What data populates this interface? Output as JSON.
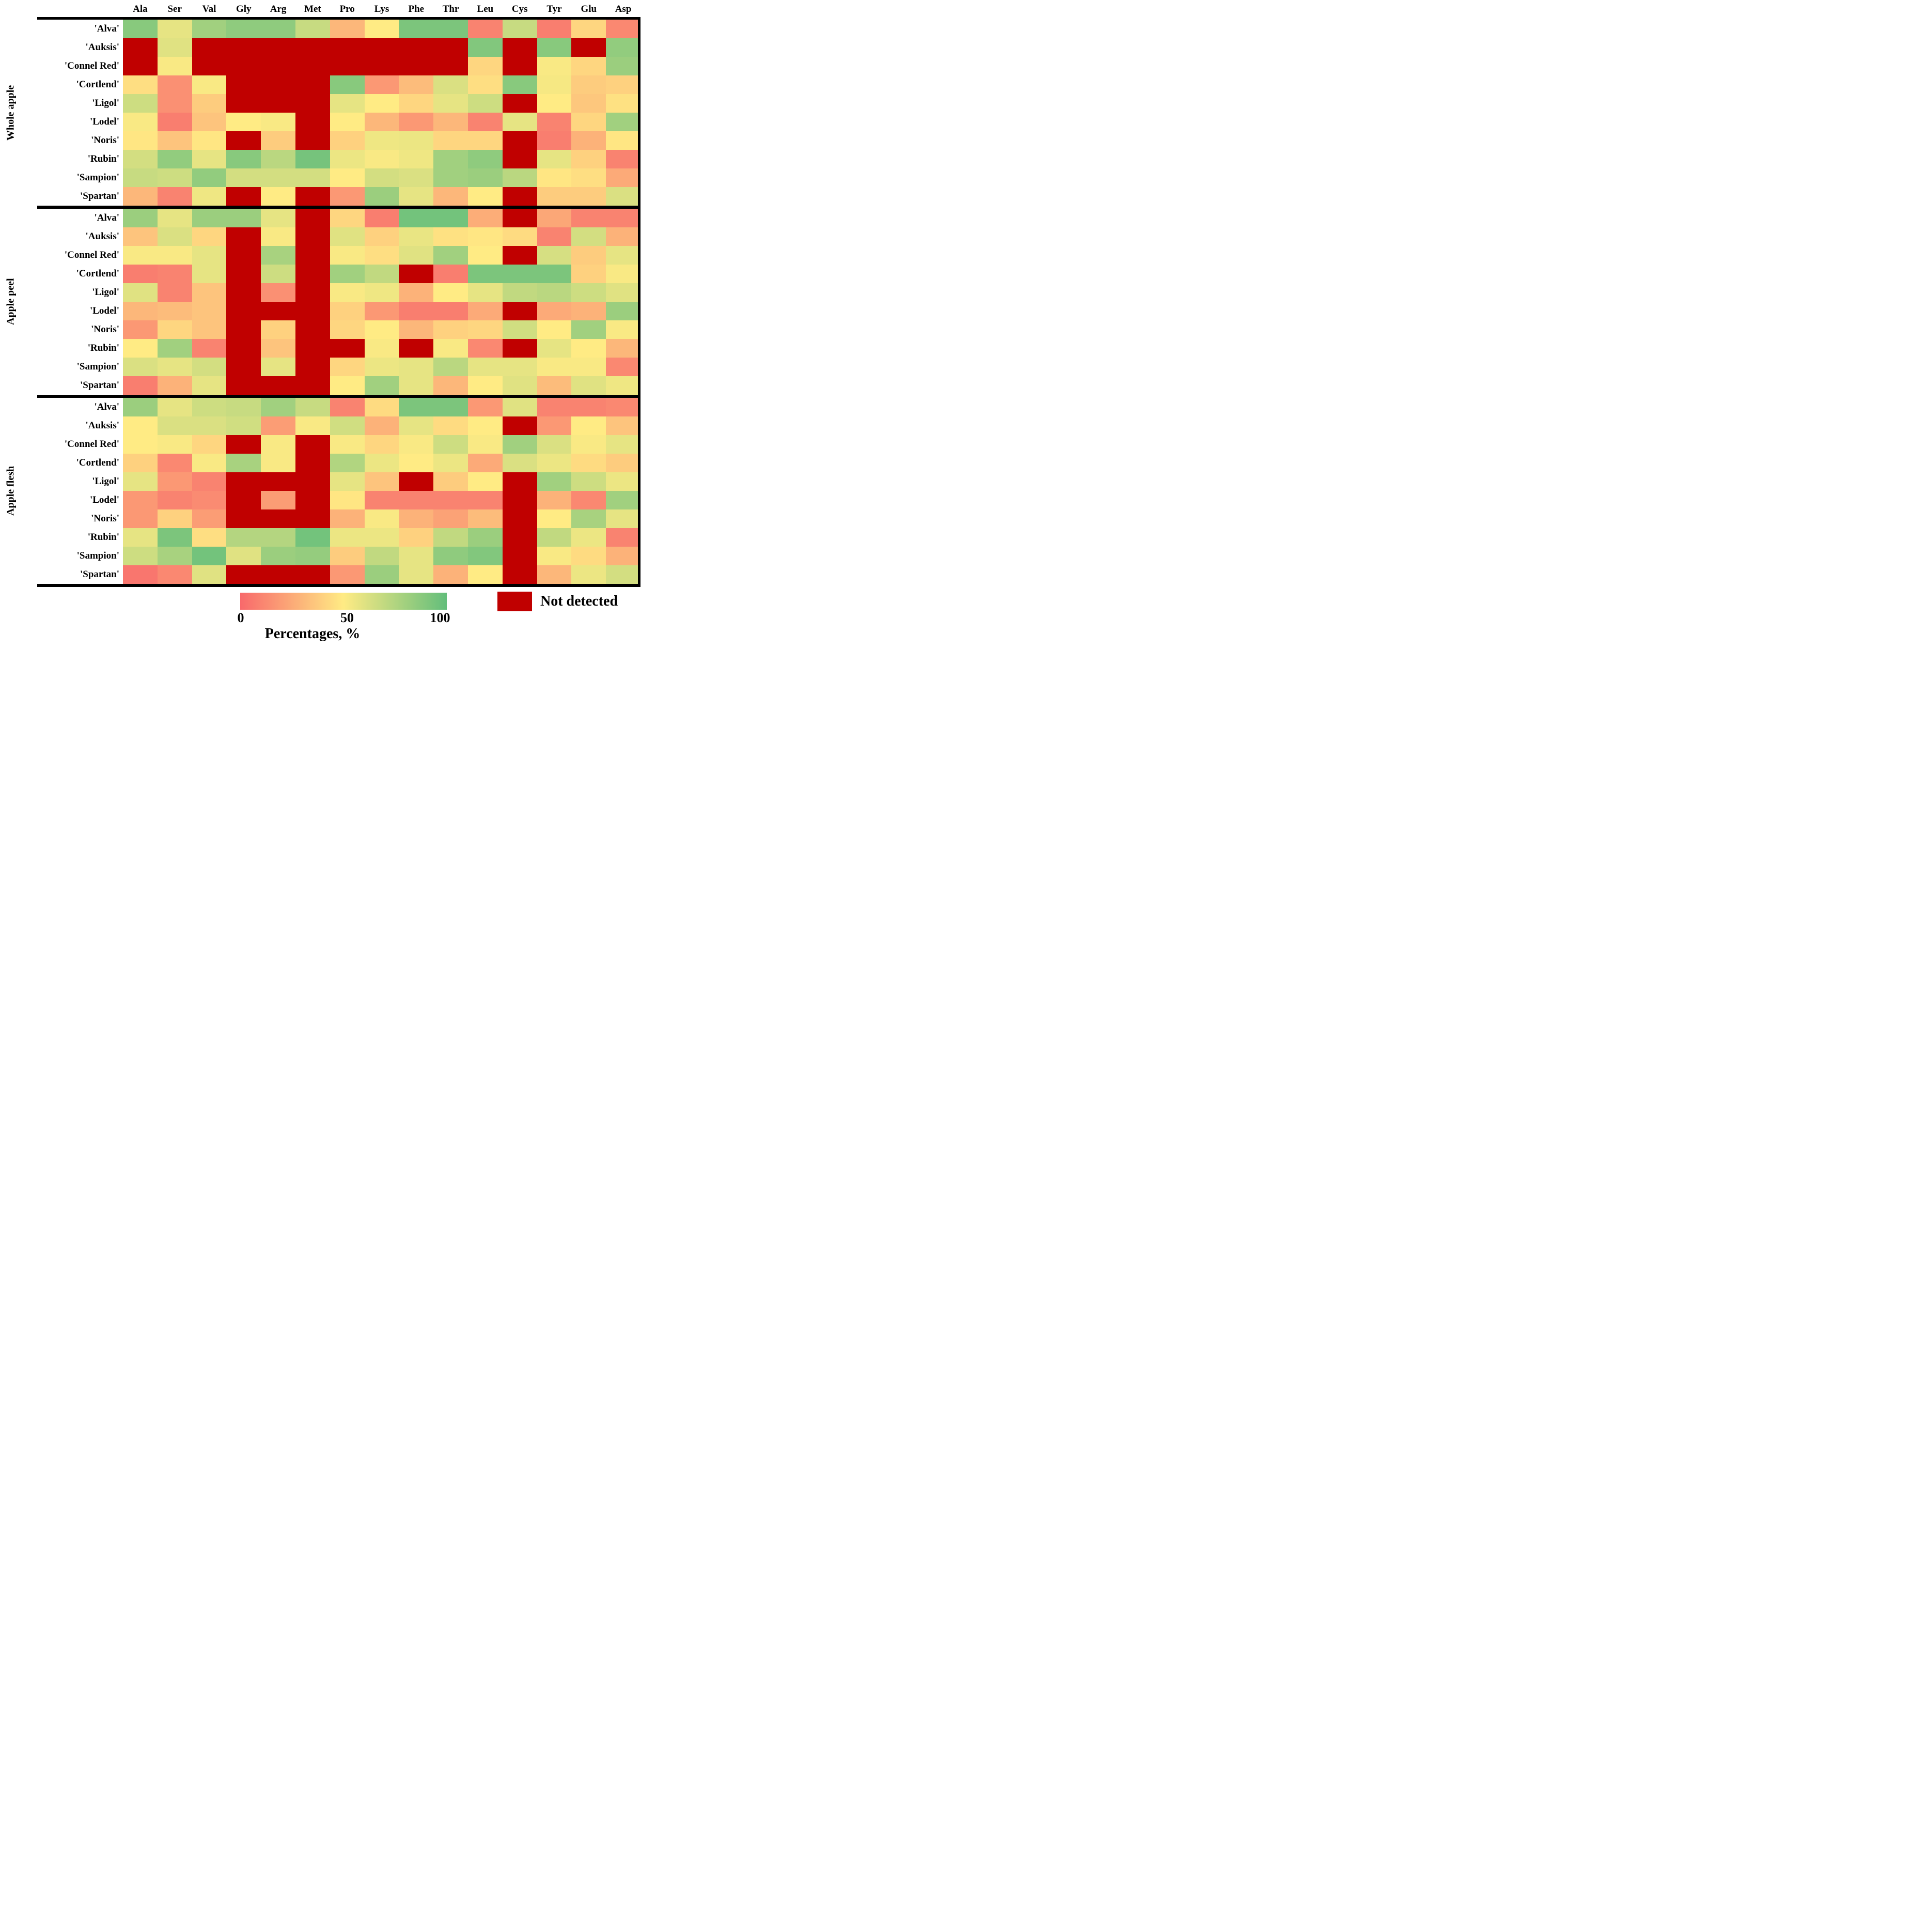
{
  "chart_data": {
    "type": "heatmap",
    "x_categories": [
      "Ala",
      "Ser",
      "Val",
      "Gly",
      "Arg",
      "Met",
      "Pro",
      "Lys",
      "Phe",
      "Thr",
      "Leu",
      "Cys",
      "Tyr",
      "Glu",
      "Asp"
    ],
    "value_scale": {
      "min": 0,
      "mid": 50,
      "max": 100,
      "unit": "%"
    },
    "not_detected_value": "ND",
    "legend": {
      "title": "Percentages, %",
      "ticks": [
        "0",
        "50",
        "100"
      ],
      "not_detected_label": "Not detected"
    },
    "colors": {
      "scale_min": "#F8696B",
      "scale_mid": "#FFEB84",
      "scale_max": "#63BE7B",
      "not_detected": "#C00000",
      "border": "#000000"
    },
    "row_groups": [
      {
        "label": "Whole apple",
        "rows": [
          {
            "label": "'Alva'",
            "values": [
              88,
              58,
              80,
              86,
              86,
              68,
              30,
              50,
              92,
              92,
              10,
              68,
              8,
              42,
              12
            ]
          },
          {
            "label": "'Auksis'",
            "values": [
              "ND",
              60,
              "ND",
              "ND",
              "ND",
              "ND",
              "ND",
              "ND",
              "ND",
              "ND",
              90,
              "ND",
              88,
              "ND",
              85
            ]
          },
          {
            "label": "'Connel Red'",
            "values": [
              "ND",
              52,
              "ND",
              "ND",
              "ND",
              "ND",
              "ND",
              "ND",
              "ND",
              "ND",
              42,
              "ND",
              52,
              42,
              82
            ]
          },
          {
            "label": "'Cortlend'",
            "values": [
              45,
              15,
              52,
              "ND",
              "ND",
              "ND",
              88,
              18,
              32,
              62,
              45,
              88,
              53,
              38,
              40
            ]
          },
          {
            "label": "'Ligol'",
            "values": [
              66,
              15,
              38,
              "ND",
              "ND",
              "ND",
              58,
              50,
              42,
              58,
              66,
              "ND",
              50,
              36,
              46
            ]
          },
          {
            "label": "'Lodel'",
            "values": [
              52,
              8,
              35,
              50,
              52,
              "ND",
              50,
              30,
              18,
              30,
              10,
              58,
              10,
              42,
              80
            ]
          },
          {
            "label": "'Noris'",
            "values": [
              48,
              35,
              48,
              "ND",
              38,
              "ND",
              40,
              55,
              56,
              42,
              42,
              "ND",
              8,
              28,
              48
            ]
          },
          {
            "label": "'Rubin'",
            "values": [
              64,
              85,
              58,
              88,
              72,
              94,
              56,
              52,
              55,
              80,
              86,
              "ND",
              58,
              40,
              10
            ]
          },
          {
            "label": "'Sampion'",
            "values": [
              68,
              66,
              85,
              64,
              64,
              64,
              50,
              64,
              62,
              80,
              82,
              72,
              48,
              45,
              25
            ]
          },
          {
            "label": "'Spartan'",
            "values": [
              30,
              10,
              55,
              "ND",
              50,
              "ND",
              18,
              82,
              58,
              30,
              50,
              "ND",
              38,
              38,
              62
            ]
          }
        ]
      },
      {
        "label": "Apple peel",
        "rows": [
          {
            "label": "'Alva'",
            "values": [
              82,
              58,
              82,
              82,
              58,
              "ND",
              42,
              8,
              95,
              95,
              26,
              "ND",
              24,
              10,
              10
            ]
          },
          {
            "label": "'Auksis'",
            "values": [
              35,
              62,
              42,
              "ND",
              52,
              "ND",
              60,
              40,
              57,
              46,
              48,
              44,
              10,
              64,
              28
            ]
          },
          {
            "label": "'Connel Red'",
            "values": [
              52,
              52,
              58,
              "ND",
              78,
              "ND",
              52,
              45,
              60,
              80,
              50,
              "ND",
              63,
              38,
              58
            ]
          },
          {
            "label": "'Cortlend'",
            "values": [
              8,
              10,
              58,
              "ND",
              66,
              "ND",
              80,
              70,
              "ND",
              8,
              92,
              92,
              92,
              40,
              52
            ]
          },
          {
            "label": "'Ligol'",
            "values": [
              60,
              10,
              35,
              "ND",
              15,
              "ND",
              52,
              55,
              28,
              50,
              58,
              70,
              72,
              66,
              60
            ]
          },
          {
            "label": "'Lodel'",
            "values": [
              30,
              32,
              35,
              "ND",
              "ND",
              "ND",
              40,
              18,
              8,
              8,
              25,
              "ND",
              25,
              28,
              82
            ]
          },
          {
            "label": "'Noris'",
            "values": [
              18,
              42,
              35,
              "ND",
              40,
              "ND",
              42,
              50,
              30,
              40,
              42,
              65,
              50,
              80,
              52
            ]
          },
          {
            "label": "'Rubin'",
            "values": [
              50,
              80,
              10,
              "ND",
              35,
              "ND",
              "ND",
              52,
              "ND",
              52,
              12,
              "ND",
              58,
              50,
              30
            ]
          },
          {
            "label": "'Sampion'",
            "values": [
              62,
              58,
              64,
              "ND",
              58,
              "ND",
              42,
              56,
              58,
              72,
              58,
              58,
              52,
              52,
              12
            ]
          },
          {
            "label": "'Spartan'",
            "values": [
              8,
              28,
              58,
              "ND",
              "ND",
              "ND",
              50,
              80,
              58,
              30,
              50,
              60,
              32,
              60,
              55
            ]
          }
        ]
      },
      {
        "label": "Apple flesh",
        "rows": [
          {
            "label": "'Alva'",
            "values": [
              82,
              58,
              66,
              68,
              80,
              68,
              10,
              44,
              92,
              92,
              18,
              60,
              10,
              10,
              12
            ]
          },
          {
            "label": "'Auksis'",
            "values": [
              50,
              62,
              62,
              65,
              20,
              52,
              65,
              28,
              58,
              44,
              50,
              "ND",
              18,
              50,
              35
            ]
          },
          {
            "label": "'Connel Red'",
            "values": [
              50,
              52,
              42,
              "ND",
              52,
              "ND",
              52,
              42,
              52,
              66,
              52,
              80,
              62,
              52,
              58
            ]
          },
          {
            "label": "'Cortlend'",
            "values": [
              40,
              12,
              52,
              78,
              52,
              "ND",
              75,
              56,
              50,
              56,
              25,
              62,
              56,
              44,
              38
            ]
          },
          {
            "label": "'Ligol'",
            "values": [
              58,
              18,
              10,
              "ND",
              "ND",
              "ND",
              58,
              35,
              "ND",
              38,
              50,
              "ND",
              80,
              66,
              56
            ]
          },
          {
            "label": "'Lodel'",
            "values": [
              18,
              10,
              13,
              "ND",
              20,
              "ND",
              48,
              10,
              10,
              10,
              10,
              "ND",
              28,
              12,
              80
            ]
          },
          {
            "label": "'Noris'",
            "values": [
              18,
              40,
              20,
              "ND",
              "ND",
              "ND",
              28,
              52,
              28,
              22,
              32,
              "ND",
              50,
              78,
              58
            ]
          },
          {
            "label": "'Rubin'",
            "values": [
              58,
              92,
              45,
              74,
              74,
              95,
              56,
              56,
              40,
              70,
              82,
              "ND",
              70,
              56,
              10
            ]
          },
          {
            "label": "'Sampion'",
            "values": [
              66,
              78,
              95,
              60,
              82,
              84,
              38,
              70,
              58,
              86,
              90,
              "ND",
              52,
              44,
              28
            ]
          },
          {
            "label": "'Spartan'",
            "values": [
              5,
              12,
              60,
              "ND",
              "ND",
              "ND",
              18,
              82,
              58,
              28,
              50,
              "ND",
              30,
              56,
              64
            ]
          }
        ]
      }
    ]
  }
}
